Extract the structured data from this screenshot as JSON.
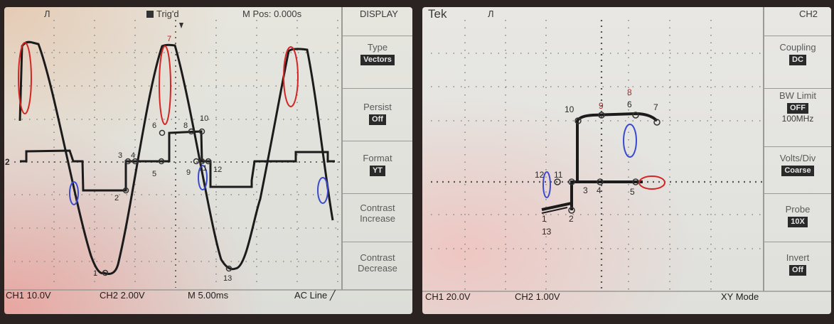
{
  "left_scope": {
    "top_bar": {
      "channel_marker": "Л",
      "trig_status": "Trig'd",
      "mpos_label": "M Pos: 0.000s",
      "menu_title": "DISPLAY"
    },
    "menu": [
      {
        "label": "Type",
        "value": "Vectors"
      },
      {
        "label": "Persist",
        "value": "Off"
      },
      {
        "label": "Format",
        "value": "YT"
      },
      {
        "label": "Contrast",
        "sub": "Increase"
      },
      {
        "label": "Contrast",
        "sub": "Decrease"
      }
    ],
    "bottom_bar": {
      "ch1": "CH1  10.0V",
      "ch2": "CH2  2.00V",
      "time": "M 5.00ms",
      "trigger": "AC Line"
    },
    "ground_marker": "2",
    "point_labels": [
      "1",
      "2",
      "3",
      "4",
      "5",
      "6",
      "7",
      "8",
      "9",
      "10",
      "11",
      "12",
      "13"
    ],
    "colors": {
      "trace": "#1b1b1b",
      "red_annotation": "#d42424",
      "blue_annotation": "#3a4ad0"
    }
  },
  "right_scope": {
    "top_bar": {
      "brand": "Tek",
      "channel_marker": "Л",
      "menu_title": "CH2"
    },
    "menu": [
      {
        "label": "Coupling",
        "value": "DC"
      },
      {
        "label": "BW Limit",
        "value": "OFF",
        "sub": "100MHz"
      },
      {
        "label": "Volts/Div",
        "value": "Coarse"
      },
      {
        "label": "Probe",
        "value": "10X"
      },
      {
        "label": "Invert",
        "value": "Off"
      }
    ],
    "bottom_bar": {
      "ch1": "CH1  20.0V",
      "ch2": "CH2  1.00V",
      "mode": "XY Mode"
    },
    "point_labels": [
      "1",
      "2",
      "3",
      "4",
      "5",
      "6",
      "7",
      "8",
      "9",
      "10",
      "11",
      "12",
      "13"
    ]
  }
}
